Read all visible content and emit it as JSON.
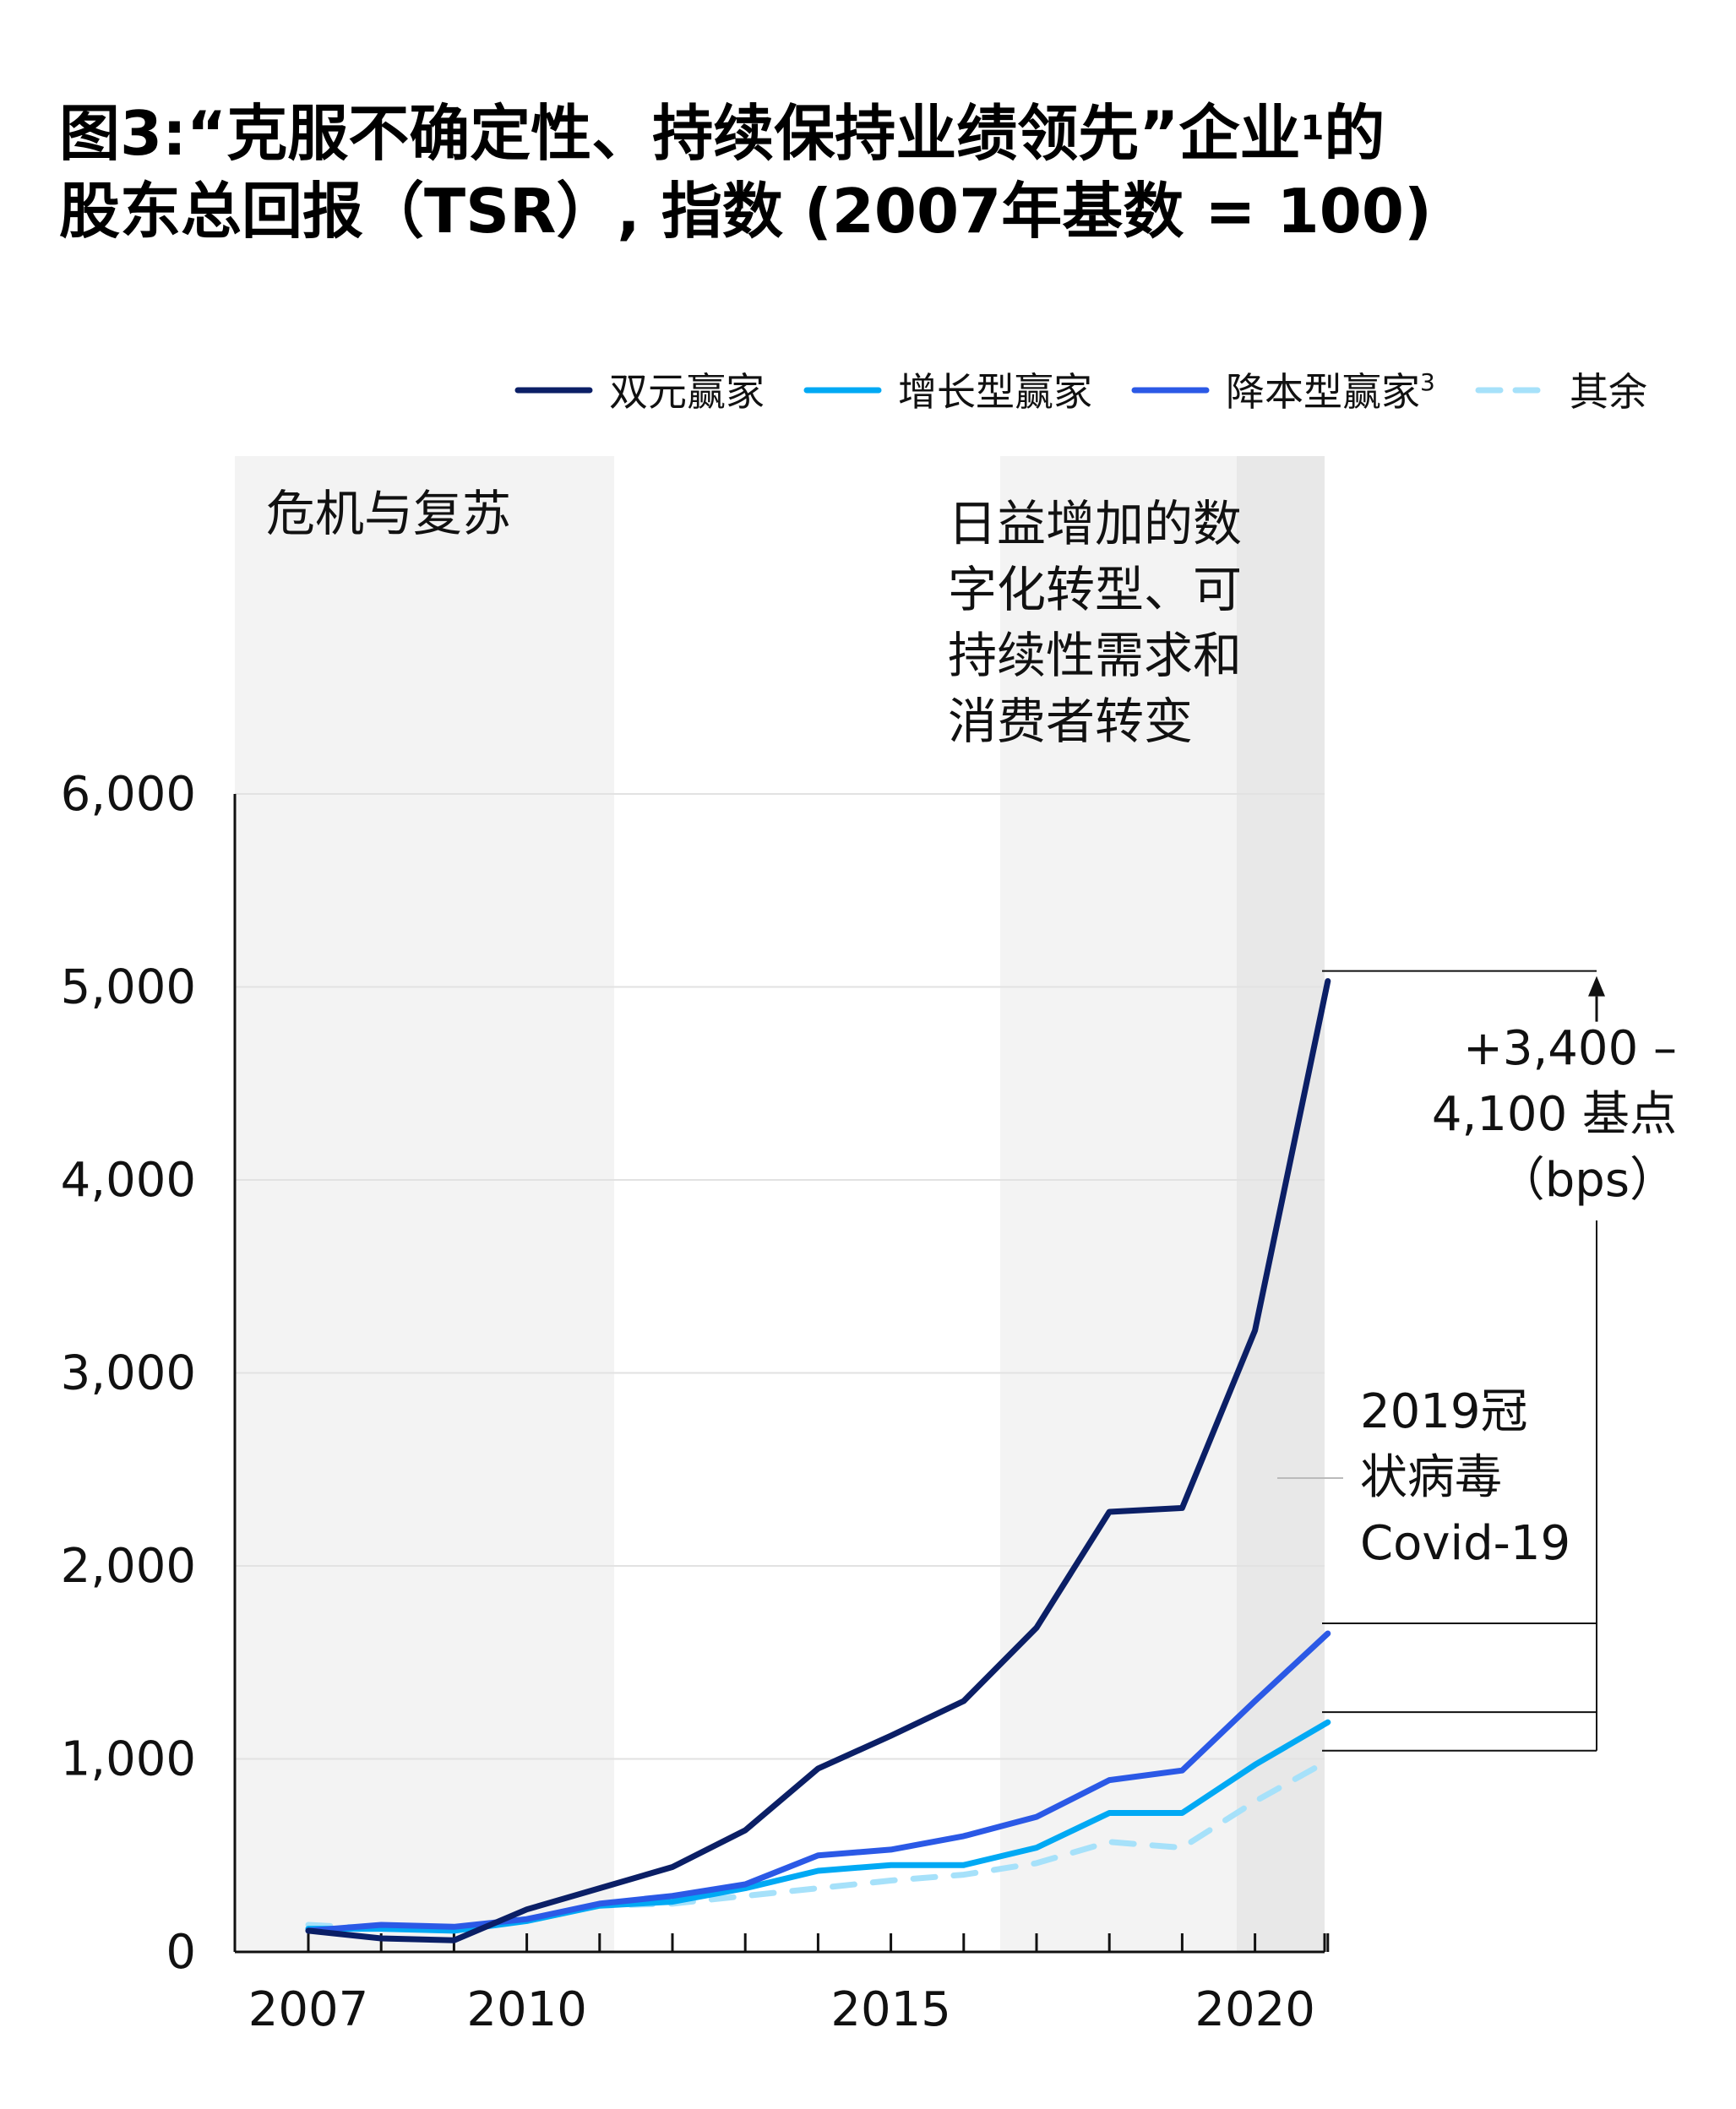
{
  "title_main": "图3:“克服不确定性、持续保持业绩领先”企业",
  "title_sup": "1",
  "title_end": "的",
  "title_line2": "股东总回报（TSR）, 指数 (2007年基数 = 100)",
  "legend": [
    {
      "label": "双元赢家",
      "sup": ""
    },
    {
      "label": "增长型赢家",
      "sup": ""
    },
    {
      "label": "降本型赢家",
      "sup": "3"
    },
    {
      "label": "其余",
      "sup": ""
    }
  ],
  "colors": {
    "dual": "#0b1f66",
    "growth": "#00a9f4",
    "cost": "#2b59e6",
    "rest": "#a6e1fa",
    "shade": "#f3f3f3",
    "shade_dark": "#e8e8e8"
  },
  "annotations": {
    "crisis": [
      "危机与复苏"
    ],
    "digital": [
      "日益增加的数",
      "字化转型、可",
      "持续性需求和",
      "消费者转变"
    ],
    "covid": [
      "2019冠",
      "状病毒",
      "Covid-19"
    ],
    "bracket": [
      "+3,400 –",
      "4,100 基点",
      "（bps）"
    ]
  },
  "chart_data": {
    "type": "line",
    "x": [
      2007,
      2008,
      2009,
      2010,
      2011,
      2012,
      2013,
      2014,
      2015,
      2016,
      2017,
      2018,
      2019,
      2020,
      2021
    ],
    "series": [
      {
        "name": "双元赢家",
        "key": "dual",
        "values": [
          110,
          70,
          60,
          220,
          330,
          440,
          630,
          950,
          1120,
          1300,
          1680,
          2280,
          2300,
          3220,
          5030
        ]
      },
      {
        "name": "增长型赢家",
        "key": "growth",
        "values": [
          120,
          120,
          110,
          160,
          240,
          260,
          330,
          420,
          450,
          450,
          540,
          720,
          720,
          970,
          1190
        ]
      },
      {
        "name": "降本型赢家",
        "key": "cost",
        "values": [
          110,
          140,
          130,
          170,
          250,
          290,
          350,
          500,
          530,
          600,
          700,
          890,
          940,
          1300,
          1650
        ]
      },
      {
        "name": "其余",
        "key": "rest",
        "values": [
          140,
          120,
          120,
          170,
          240,
          250,
          290,
          330,
          370,
          400,
          460,
          570,
          540,
          780,
          990
        ]
      }
    ],
    "yticks": [
      0,
      1000,
      2000,
      3000,
      4000,
      5000,
      6000
    ],
    "ytick_labels": [
      "0",
      "1,000",
      "2,000",
      "3,000",
      "4,000",
      "5,000",
      "6,000"
    ],
    "xtick_labels": [
      {
        "year": 2007,
        "label": "2007"
      },
      {
        "year": 2010,
        "label": "2010"
      },
      {
        "year": 2015,
        "label": "2015"
      },
      {
        "year": 2020,
        "label": "2020"
      }
    ],
    "ylim": [
      0,
      6000
    ],
    "xlim": [
      2007,
      2021
    ],
    "shaded_periods": [
      {
        "from": 2007,
        "to": 2011
      },
      {
        "from": 2016,
        "to": 2021
      }
    ],
    "grid": true,
    "legend_position": "top-right"
  }
}
